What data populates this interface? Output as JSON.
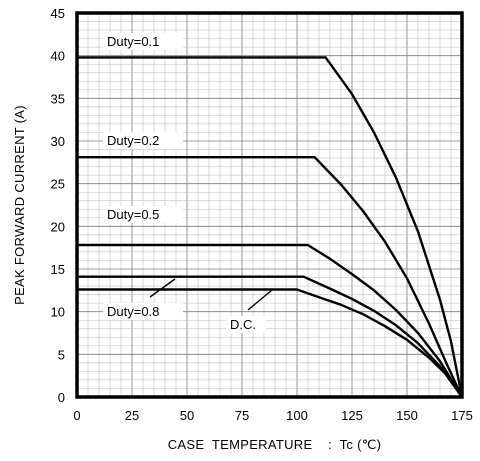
{
  "chart_data": {
    "type": "line",
    "title": "",
    "xlabel": "CASE  TEMPERATURE    :  Tc (℃)",
    "ylabel": "PEAK  FORWARD  CURRENT  (A)",
    "xlim": [
      0,
      175
    ],
    "ylim": [
      0,
      45
    ],
    "x_ticks": [
      "0",
      "25",
      "50",
      "75",
      "100",
      "125",
      "150",
      "175"
    ],
    "y_ticks": [
      "0",
      "5",
      "10",
      "15",
      "20",
      "25",
      "30",
      "35",
      "40",
      "45"
    ],
    "grid": true,
    "series": [
      {
        "name": "Duty=0.1",
        "x": [
          0,
          113,
          125,
          135,
          145,
          155,
          165,
          170,
          175
        ],
        "y": [
          39.8,
          39.8,
          35.5,
          31.0,
          25.7,
          19.4,
          11.4,
          6.5,
          0
        ]
      },
      {
        "name": "Duty=0.2",
        "x": [
          0,
          108,
          120,
          130,
          140,
          150,
          160,
          168,
          175
        ],
        "y": [
          28.1,
          28.1,
          24.9,
          21.8,
          18.2,
          13.9,
          8.6,
          3.9,
          0
        ]
      },
      {
        "name": "Duty=0.5",
        "x": [
          0,
          105,
          115,
          125,
          135,
          145,
          155,
          165,
          175
        ],
        "y": [
          17.8,
          17.8,
          16.2,
          14.4,
          12.5,
          10.2,
          7.5,
          4.2,
          0
        ]
      },
      {
        "name": "Duty=0.8",
        "x": [
          0,
          103,
          115,
          125,
          135,
          145,
          155,
          165,
          175
        ],
        "y": [
          14.1,
          14.1,
          12.7,
          11.5,
          10.1,
          8.4,
          6.3,
          3.6,
          0
        ]
      },
      {
        "name": "D.C.",
        "x": [
          0,
          100,
          110,
          120,
          130,
          140,
          150,
          160,
          168,
          175
        ],
        "y": [
          12.6,
          12.6,
          11.7,
          10.8,
          9.7,
          8.3,
          6.7,
          4.6,
          2.6,
          0
        ]
      }
    ]
  }
}
